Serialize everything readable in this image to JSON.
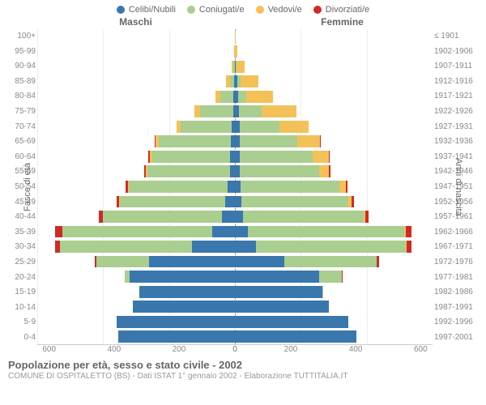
{
  "legend": {
    "items": [
      {
        "label": "Celibi/Nubili",
        "color": "#3a77ad"
      },
      {
        "label": "Coniugati/e",
        "color": "#a9ce8f"
      },
      {
        "label": "Vedovi/e",
        "color": "#f4c159"
      },
      {
        "label": "Divorziati/e",
        "color": "#cf2a28"
      }
    ]
  },
  "side_titles": {
    "male": "Maschi",
    "female": "Femmine"
  },
  "axis_labels": {
    "left": "Fasce di età",
    "right": "Anni di nascita"
  },
  "age_brackets": [
    "0-4",
    "5-9",
    "10-14",
    "15-19",
    "20-24",
    "25-29",
    "30-34",
    "35-39",
    "40-44",
    "45-49",
    "50-54",
    "55-59",
    "60-64",
    "65-69",
    "70-74",
    "75-79",
    "80-84",
    "85-89",
    "90-94",
    "95-99",
    "100+"
  ],
  "birth_years": [
    "1997-2001",
    "1992-1996",
    "1987-1991",
    "1982-1986",
    "1977-1981",
    "1972-1976",
    "1967-1971",
    "1962-1966",
    "1957-1961",
    "1952-1956",
    "1947-1951",
    "1942-1946",
    "1937-1941",
    "1932-1936",
    "1927-1931",
    "1922-1926",
    "1917-1921",
    "1912-1916",
    "1907-1911",
    "1902-1906",
    "≤ 1901"
  ],
  "x_ticks": [
    0,
    200,
    400,
    600
  ],
  "x_max": 600,
  "colors": {
    "celibi": "#3a77ad",
    "coniugati": "#a9ce8f",
    "vedovi": "#f4c159",
    "divorziati": "#cf2a28",
    "grid": "#eeeeee",
    "centerline": "#999999",
    "bg": "#ffffff"
  },
  "data": {
    "male": [
      {
        "c": 355,
        "m": 0,
        "w": 0,
        "d": 0
      },
      {
        "c": 360,
        "m": 0,
        "w": 0,
        "d": 0
      },
      {
        "c": 310,
        "m": 0,
        "w": 0,
        "d": 0
      },
      {
        "c": 290,
        "m": 0,
        "w": 0,
        "d": 0
      },
      {
        "c": 320,
        "m": 15,
        "w": 0,
        "d": 0
      },
      {
        "c": 260,
        "m": 160,
        "w": 0,
        "d": 5
      },
      {
        "c": 130,
        "m": 400,
        "w": 0,
        "d": 15
      },
      {
        "c": 70,
        "m": 455,
        "w": 0,
        "d": 20
      },
      {
        "c": 40,
        "m": 360,
        "w": 2,
        "d": 12
      },
      {
        "c": 30,
        "m": 320,
        "w": 2,
        "d": 6
      },
      {
        "c": 22,
        "m": 300,
        "w": 3,
        "d": 6
      },
      {
        "c": 15,
        "m": 250,
        "w": 5,
        "d": 5
      },
      {
        "c": 15,
        "m": 235,
        "w": 8,
        "d": 4
      },
      {
        "c": 12,
        "m": 220,
        "w": 10,
        "d": 2
      },
      {
        "c": 10,
        "m": 155,
        "w": 12,
        "d": 0
      },
      {
        "c": 6,
        "m": 100,
        "w": 18,
        "d": 0
      },
      {
        "c": 4,
        "m": 40,
        "w": 15,
        "d": 0
      },
      {
        "c": 2,
        "m": 14,
        "w": 12,
        "d": 0
      },
      {
        "c": 1,
        "m": 4,
        "w": 6,
        "d": 0
      },
      {
        "c": 0,
        "m": 1,
        "w": 2,
        "d": 0
      },
      {
        "c": 0,
        "m": 0,
        "w": 0,
        "d": 0
      }
    ],
    "female": [
      {
        "c": 370,
        "m": 0,
        "w": 0,
        "d": 0
      },
      {
        "c": 345,
        "m": 0,
        "w": 0,
        "d": 0
      },
      {
        "c": 285,
        "m": 0,
        "w": 0,
        "d": 0
      },
      {
        "c": 265,
        "m": 2,
        "w": 0,
        "d": 0
      },
      {
        "c": 255,
        "m": 70,
        "w": 0,
        "d": 2
      },
      {
        "c": 150,
        "m": 280,
        "w": 1,
        "d": 6
      },
      {
        "c": 65,
        "m": 455,
        "w": 2,
        "d": 15
      },
      {
        "c": 40,
        "m": 475,
        "w": 5,
        "d": 15
      },
      {
        "c": 25,
        "m": 365,
        "w": 6,
        "d": 10
      },
      {
        "c": 20,
        "m": 325,
        "w": 10,
        "d": 6
      },
      {
        "c": 18,
        "m": 300,
        "w": 20,
        "d": 5
      },
      {
        "c": 15,
        "m": 240,
        "w": 30,
        "d": 5
      },
      {
        "c": 15,
        "m": 220,
        "w": 50,
        "d": 3
      },
      {
        "c": 14,
        "m": 175,
        "w": 70,
        "d": 2
      },
      {
        "c": 15,
        "m": 120,
        "w": 90,
        "d": 0
      },
      {
        "c": 12,
        "m": 70,
        "w": 105,
        "d": 0
      },
      {
        "c": 10,
        "m": 25,
        "w": 80,
        "d": 0
      },
      {
        "c": 8,
        "m": 8,
        "w": 55,
        "d": 0
      },
      {
        "c": 3,
        "m": 2,
        "w": 25,
        "d": 0
      },
      {
        "c": 1,
        "m": 0,
        "w": 7,
        "d": 0
      },
      {
        "c": 0,
        "m": 0,
        "w": 2,
        "d": 0
      }
    ]
  },
  "footer": {
    "title": "Popolazione per età, sesso e stato civile - 2002",
    "subtitle": "COMUNE DI OSPITALETTO (BS) - Dati ISTAT 1° gennaio 2002 - Elaborazione TUTTITALIA.IT"
  }
}
